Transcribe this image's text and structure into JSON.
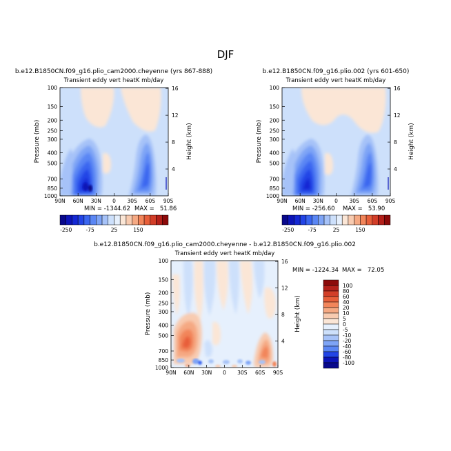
{
  "figure": {
    "title": "DJF"
  },
  "chart_data": [
    {
      "type": "heatmap",
      "title": "b.e12.B1850CN.f09_g16.plio_cam2000.cheyenne (yrs 867-888)",
      "subtitle": "Transient eddy vert heatK mb/day",
      "ylabel": "Pressure (mb)",
      "y2label": "Height (km)",
      "x_ticks": [
        "90N",
        "60N",
        "30N",
        "0",
        "30S",
        "60S",
        "90S"
      ],
      "y_ticks": [
        100,
        150,
        200,
        250,
        300,
        400,
        500,
        700,
        850,
        1000
      ],
      "y2_ticks": [
        16,
        12,
        8,
        4
      ],
      "min_text": "MIN = -1344.62",
      "max_text": "MAX =   51.86",
      "min": -1344.62,
      "max": 51.86,
      "levels": [
        -250,
        -200,
        -150,
        -125,
        -100,
        -75,
        -50,
        -25,
        -10,
        0,
        10,
        25,
        50,
        75,
        100,
        150,
        200,
        250
      ]
    },
    {
      "type": "heatmap",
      "title": "b.e12.B1850CN.f09_g16.plio.002 (yrs 601-650)",
      "subtitle": "Transient eddy vert heatK mb/day",
      "ylabel": "Pressure (mb)",
      "y2label": "Height (km)",
      "x_ticks": [
        "90N",
        "60N",
        "30N",
        "0",
        "30S",
        "60S",
        "90S"
      ],
      "y_ticks": [
        100,
        150,
        200,
        250,
        300,
        400,
        500,
        700,
        850,
        1000
      ],
      "y2_ticks": [
        16,
        12,
        8,
        4
      ],
      "min_text": "MIN = -256.60",
      "max_text": "MAX =   53.90",
      "min": -256.6,
      "max": 53.9,
      "levels": [
        -250,
        -200,
        -150,
        -125,
        -100,
        -75,
        -50,
        -25,
        -10,
        0,
        10,
        25,
        50,
        75,
        100,
        150,
        200,
        250
      ]
    },
    {
      "type": "heatmap",
      "title": "b.e12.B1850CN.f09_g16.plio_cam2000.cheyenne - b.e12.B1850CN.f09_g16.plio.002",
      "subtitle": "Transient eddy vert heatK mb/day",
      "ylabel": "Pressure (mb)",
      "y2label": "Height (km)",
      "x_ticks": [
        "90N",
        "60N",
        "30N",
        "0",
        "30S",
        "60S",
        "90S"
      ],
      "y_ticks": [
        100,
        150,
        200,
        250,
        300,
        400,
        500,
        700,
        850,
        1000
      ],
      "y2_ticks": [
        16,
        12,
        8,
        4
      ],
      "min_text": "MIN = -1224.34",
      "max_text": "MAX =   72.05",
      "min": -1224.34,
      "max": 72.05,
      "levels": [
        -100,
        -80,
        -60,
        -40,
        -20,
        -10,
        -5,
        0,
        5,
        10,
        20,
        40,
        60,
        80,
        100
      ]
    }
  ],
  "colorbar_top": {
    "labels": [
      "-250",
      "-75",
      "25",
      "150"
    ],
    "colors": [
      "#08088c",
      "#0c14b8",
      "#1428d4",
      "#2244e6",
      "#3a66f0",
      "#5a86f4",
      "#7ea4f6",
      "#a6c2f8",
      "#cde0fb",
      "#e6f0fd",
      "#fbe6d6",
      "#f8cbb0",
      "#f5a983",
      "#f2855a",
      "#e85f3a",
      "#d23e28",
      "#b4201a",
      "#8c0a0a"
    ]
  },
  "colorbar_diff": {
    "labels": [
      "100",
      "80",
      "60",
      "40",
      "20",
      "10",
      "5",
      "0",
      "-5",
      "-10",
      "-20",
      "-40",
      "-60",
      "-80",
      "-100"
    ],
    "colors": [
      "#8c0a0a",
      "#b4201a",
      "#d23e28",
      "#e85f3a",
      "#f2855a",
      "#f5a983",
      "#f8cbb0",
      "#fbe6d6",
      "#e6f0fd",
      "#cde0fb",
      "#a6c2f8",
      "#7ea4f6",
      "#5a86f4",
      "#2244e6",
      "#0c14b8",
      "#08088c"
    ]
  }
}
